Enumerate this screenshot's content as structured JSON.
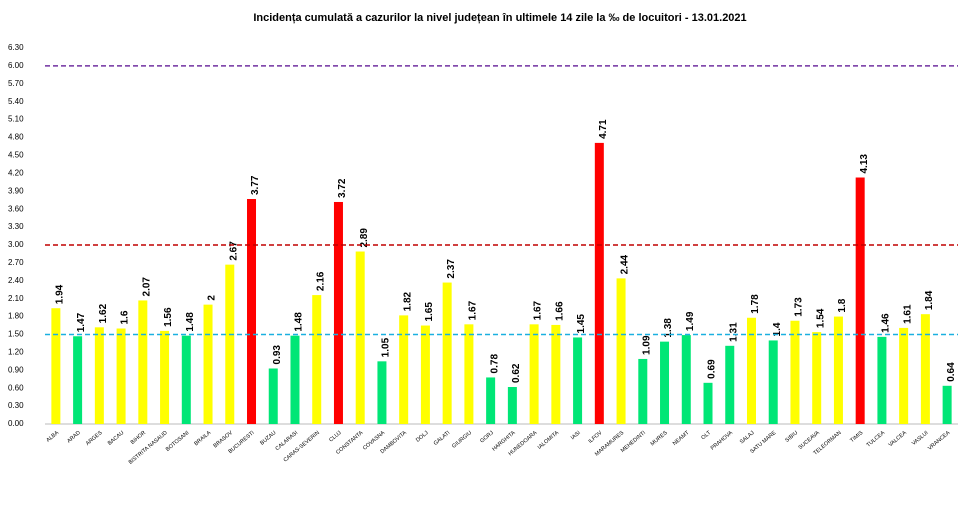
{
  "chart_data": {
    "type": "bar",
    "title": "Incidența cumulată a cazurilor la nivel județean în ultimele 14 zile la ‰ de locuitori - 13.01.2021",
    "categories": [
      "ALBA",
      "ARAD",
      "ARGES",
      "BACAU",
      "BIHOR",
      "BISTRITA NASAUD",
      "BOTOSANI",
      "BRAILA",
      "BRASOV",
      "BUCURESTI",
      "BUZAU",
      "CALARASI",
      "CARAS-SEVERIN",
      "CLUJ",
      "CONSTANTA",
      "COVASNA",
      "DAMBOVITA",
      "DOLJ",
      "GALATI",
      "GIURGIU",
      "GORJ",
      "HARGHITA",
      "HUNEDOARA",
      "IALOMITA",
      "IASI",
      "ILFOV",
      "MARAMURES",
      "MEHEDINTI",
      "MURES",
      "NEAMT",
      "OLT",
      "PRAHOVA",
      "SALAJ",
      "SATU MARE",
      "SIBIU",
      "SUCEAVA",
      "TELEORMAN",
      "TIMIS",
      "TULCEA",
      "VALCEA",
      "VASLUI",
      "VRANCEA"
    ],
    "values": [
      1.94,
      1.47,
      1.62,
      1.6,
      2.07,
      1.56,
      1.48,
      2,
      2.67,
      3.77,
      0.93,
      1.48,
      2.16,
      3.72,
      2.89,
      1.05,
      1.82,
      1.65,
      2.37,
      1.67,
      0.78,
      0.62,
      1.67,
      1.66,
      1.45,
      4.71,
      2.44,
      1.09,
      1.38,
      1.49,
      0.69,
      1.31,
      1.78,
      1.4,
      1.73,
      1.54,
      1.8,
      4.13,
      1.46,
      1.61,
      1.84,
      0.64
    ],
    "colors": [
      "#ffff00",
      "#00e676",
      "#ffff00",
      "#ffff00",
      "#ffff00",
      "#ffff00",
      "#00e676",
      "#ffff00",
      "#ffff00",
      "#ff0000",
      "#00e676",
      "#00e676",
      "#ffff00",
      "#ff0000",
      "#ffff00",
      "#00e676",
      "#ffff00",
      "#ffff00",
      "#ffff00",
      "#ffff00",
      "#00e676",
      "#00e676",
      "#ffff00",
      "#ffff00",
      "#00e676",
      "#ff0000",
      "#ffff00",
      "#00e676",
      "#00e676",
      "#00e676",
      "#00e676",
      "#00e676",
      "#ffff00",
      "#00e676",
      "#ffff00",
      "#ffff00",
      "#ffff00",
      "#ff0000",
      "#00e676",
      "#ffff00",
      "#ffff00",
      "#00e676"
    ],
    "ylim": [
      0,
      6.3
    ],
    "yticks": [
      {
        "value": 0,
        "label": "0.00"
      },
      {
        "value": 0.3,
        "label": "0.30"
      },
      {
        "value": 0.6,
        "label": "0.60"
      },
      {
        "value": 0.9,
        "label": "0.90"
      },
      {
        "value": 1.2,
        "label": "1.20"
      },
      {
        "value": 1.5,
        "label": "1.50"
      },
      {
        "value": 1.8,
        "label": "1.80"
      },
      {
        "value": 2.1,
        "label": "2.10"
      },
      {
        "value": 2.4,
        "label": "2.40"
      },
      {
        "value": 2.7,
        "label": "2.70"
      },
      {
        "value": 3,
        "label": "3.00"
      },
      {
        "value": 3.3,
        "label": "3.30"
      },
      {
        "value": 3.6,
        "label": "3.60"
      },
      {
        "value": 3.9,
        "label": "3.90"
      },
      {
        "value": 4.2,
        "label": "4.20"
      },
      {
        "value": 4.5,
        "label": "4.50"
      },
      {
        "value": 4.8,
        "label": "4.80"
      },
      {
        "value": 5.1,
        "label": "5.10"
      },
      {
        "value": 5.4,
        "label": "5.40"
      },
      {
        "value": 5.7,
        "label": "5.70"
      },
      {
        "value": 6,
        "label": "6.00"
      },
      {
        "value": 6.3,
        "label": "6.30"
      }
    ],
    "reference_lines": [
      {
        "value": 6,
        "color": "#7030a0"
      },
      {
        "value": 3,
        "color": "#c00000"
      },
      {
        "value": 1.5,
        "color": "#1ab0e0"
      }
    ],
    "grid": false
  }
}
